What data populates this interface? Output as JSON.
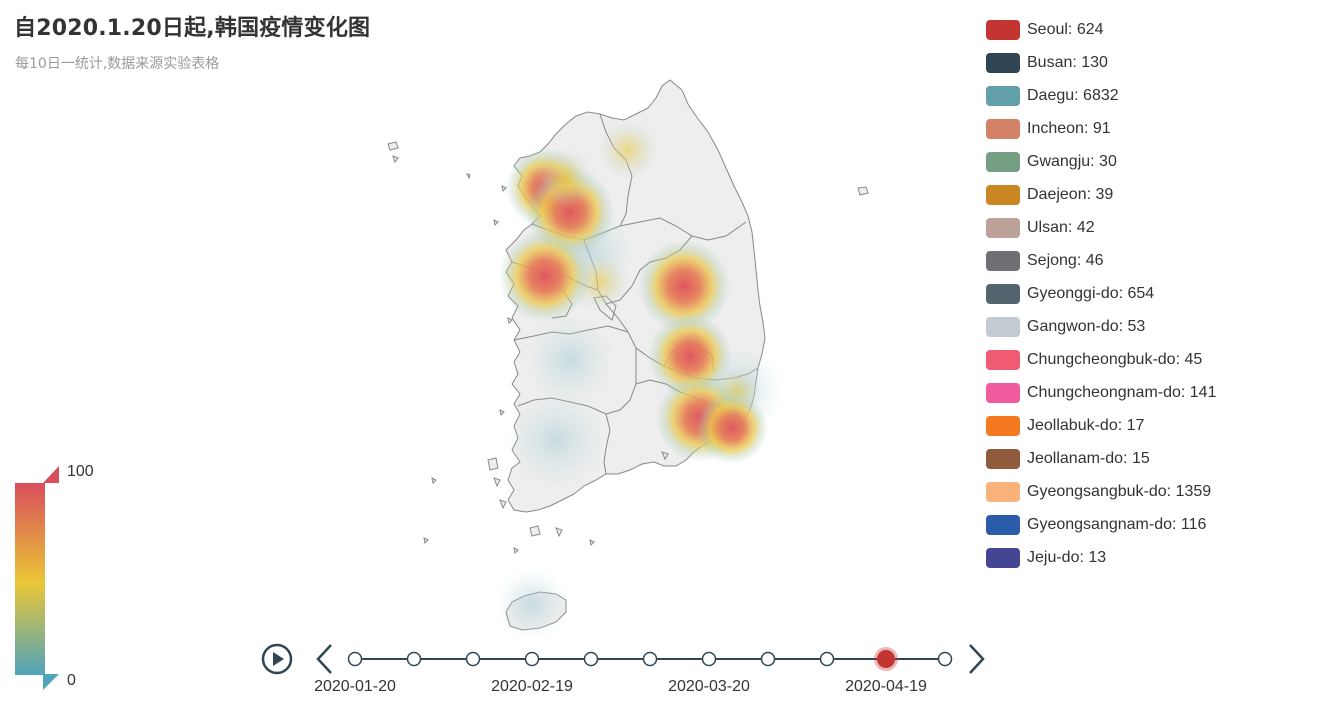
{
  "title": "自2020.1.20日起,韩国疫情变化图",
  "subtitle": "每10日一统计,数据来源实验表格",
  "legend": [
    {
      "name": "Seoul",
      "value": 624,
      "label": "Seoul: 624",
      "color": "#c23531"
    },
    {
      "name": "Busan",
      "value": 130,
      "label": "Busan: 130",
      "color": "#2f4554"
    },
    {
      "name": "Daegu",
      "value": 6832,
      "label": "Daegu: 6832",
      "color": "#61a0a8"
    },
    {
      "name": "Incheon",
      "value": 91,
      "label": "Incheon: 91",
      "color": "#d48265"
    },
    {
      "name": "Gwangju",
      "value": 30,
      "label": "Gwangju: 30",
      "color": "#749f83"
    },
    {
      "name": "Daejeon",
      "value": 39,
      "label": "Daejeon: 39",
      "color": "#ca8622"
    },
    {
      "name": "Ulsan",
      "value": 42,
      "label": "Ulsan: 42",
      "color": "#bda29a"
    },
    {
      "name": "Sejong",
      "value": 46,
      "label": "Sejong: 46",
      "color": "#6e7074"
    },
    {
      "name": "Gyeonggi-do",
      "value": 654,
      "label": "Gyeonggi-do: 654",
      "color": "#546570"
    },
    {
      "name": "Gangwon-do",
      "value": 53,
      "label": "Gangwon-do: 53",
      "color": "#c4ccd3"
    },
    {
      "name": "Chungcheongbuk-do",
      "value": 45,
      "label": "Chungcheongbuk-do: 45",
      "color": "#f05b72"
    },
    {
      "name": "Chungcheongnam-do",
      "value": 141,
      "label": "Chungcheongnam-do: 141",
      "color": "#ef5b9c"
    },
    {
      "name": "Jeollabuk-do",
      "value": 17,
      "label": "Jeollabuk-do: 17",
      "color": "#f47920"
    },
    {
      "name": "Jeollanam-do",
      "value": 15,
      "label": "Jeollanam-do: 15",
      "color": "#905a3d"
    },
    {
      "name": "Gyeongsangbuk-do",
      "value": 1359,
      "label": "Gyeongsangbuk-do: 1359",
      "color": "#fab27b"
    },
    {
      "name": "Gyeongsangnam-do",
      "value": 116,
      "label": "Gyeongsangnam-do: 116",
      "color": "#2a5caa"
    },
    {
      "name": "Jeju-do",
      "value": 13,
      "label": "Jeju-do: 13",
      "color": "#444693"
    }
  ],
  "visual_map": {
    "max_label": "100",
    "min_label": "0",
    "max": 100,
    "min": 0,
    "colors": [
      "#50a3ba",
      "#eac736",
      "#d94e5d"
    ]
  },
  "timeline": {
    "play_icon": "play-icon",
    "prev_icon": "chevron-left-icon",
    "next_icon": "chevron-right-icon",
    "point_count": 11,
    "current_index": 9,
    "labels": [
      {
        "index": 0,
        "text": "2020-01-20"
      },
      {
        "index": 3,
        "text": "2020-02-19"
      },
      {
        "index": 6,
        "text": "2020-03-20"
      },
      {
        "index": 9,
        "text": "2020-04-19"
      }
    ],
    "line_color": "#304654",
    "active_color": "#c23531"
  },
  "map": {
    "land_color": "#eeeeee",
    "border_color": "#888888"
  }
}
